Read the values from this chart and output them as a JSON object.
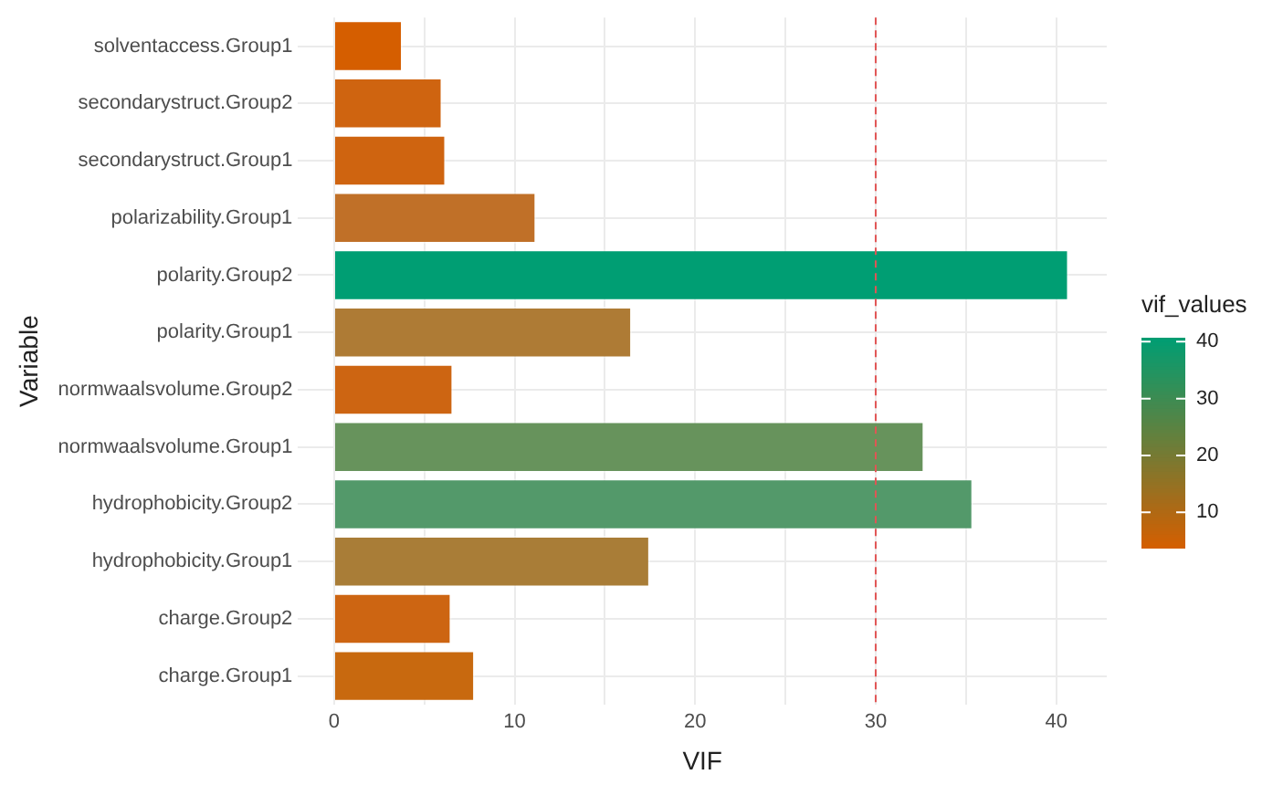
{
  "chart_data": {
    "type": "bar",
    "orientation": "horizontal",
    "xlabel": "VIF",
    "ylabel": "Variable",
    "clabel": "vif_values",
    "categories": [
      "solventaccess.Group1",
      "secondarystruct.Group2",
      "secondarystruct.Group1",
      "polarizability.Group1",
      "polarity.Group2",
      "polarity.Group1",
      "normwaalsvolume.Group2",
      "normwaalsvolume.Group1",
      "hydrophobicity.Group2",
      "hydrophobicity.Group1",
      "charge.Group2",
      "charge.Group1"
    ],
    "values": [
      3.8,
      6.0,
      6.2,
      11.2,
      40.7,
      16.5,
      6.6,
      32.7,
      35.4,
      17.5,
      6.5,
      7.8
    ],
    "colors": [
      "#d55e00",
      "#cf6410",
      "#cf6410",
      "#c07028",
      "#009e73",
      "#ae7b35",
      "#cd6512",
      "#67935c",
      "#53996a",
      "#a97d37",
      "#cd6512",
      "#c8690f"
    ],
    "clim": [
      3.8,
      40.7
    ],
    "cticks": [
      10,
      20,
      30,
      40
    ],
    "xlim": [
      -2,
      42.8
    ],
    "xticks": [
      0,
      {
        "value": 5,
        "label": null
      },
      10,
      {
        "value": 15,
        "label": null
      },
      20,
      {
        "value": 25,
        "label": null
      },
      30,
      {
        "value": 35,
        "label": null
      },
      40
    ],
    "grid": true,
    "ref_lines": [
      {
        "axis": "x",
        "value": 30,
        "color": "#e05555",
        "line_style": "dashed"
      }
    ]
  }
}
